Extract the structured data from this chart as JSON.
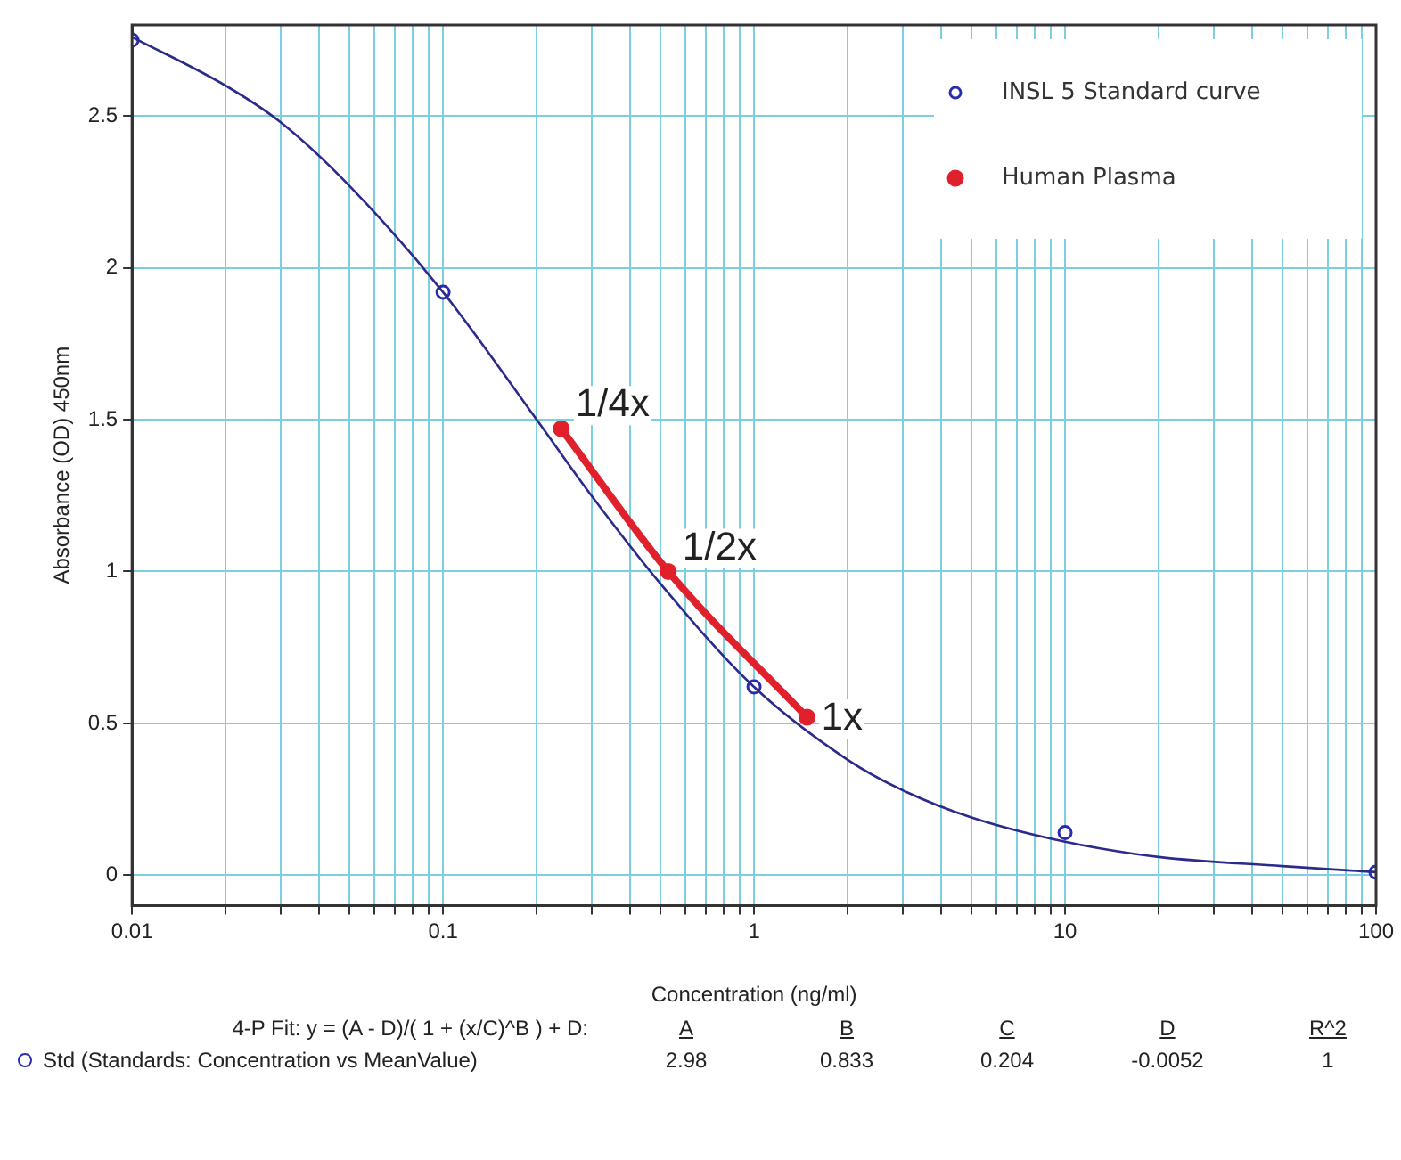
{
  "chart_data": {
    "type": "line",
    "xlabel": "Concentration (ng/ml)",
    "ylabel": "Absorbance (OD) 450nm",
    "log": "x",
    "grid": true,
    "legend": "top right",
    "xlim": [
      0.01,
      100
    ],
    "ylim": [
      -0.1,
      2.8
    ],
    "xticks": [
      0.01,
      {
        "value": 0.02,
        "label": null
      },
      {
        "value": 0.03,
        "label": null
      },
      {
        "value": 0.04,
        "label": null
      },
      {
        "value": 0.05,
        "label": null
      },
      {
        "value": 0.06,
        "label": null
      },
      {
        "value": 0.07,
        "label": null
      },
      {
        "value": 0.08,
        "label": null
      },
      {
        "value": 0.09,
        "label": null
      },
      0.1,
      {
        "value": 0.2,
        "label": null
      },
      {
        "value": 0.3,
        "label": null
      },
      {
        "value": 0.4,
        "label": null
      },
      {
        "value": 0.5,
        "label": null
      },
      {
        "value": 0.6,
        "label": null
      },
      {
        "value": 0.7,
        "label": null
      },
      {
        "value": 0.8,
        "label": null
      },
      {
        "value": 0.9,
        "label": null
      },
      1,
      {
        "value": 2,
        "label": null
      },
      {
        "value": 3,
        "label": null
      },
      {
        "value": 4,
        "label": null
      },
      {
        "value": 5,
        "label": null
      },
      {
        "value": 6,
        "label": null
      },
      {
        "value": 7,
        "label": null
      },
      {
        "value": 8,
        "label": null
      },
      {
        "value": 9,
        "label": null
      },
      10,
      {
        "value": 20,
        "label": null
      },
      {
        "value": 30,
        "label": null
      },
      {
        "value": 40,
        "label": null
      },
      {
        "value": 50,
        "label": null
      },
      {
        "value": 60,
        "label": null
      },
      {
        "value": 70,
        "label": null
      },
      {
        "value": 80,
        "label": null
      },
      {
        "value": 90,
        "label": null
      },
      100
    ],
    "yticks": [
      0,
      0.5,
      1,
      1.5,
      2,
      2.5
    ],
    "series": [
      {
        "color": "#2b2b8c",
        "marker": "none",
        "x": [
          0.01,
          0.02,
          0.03,
          0.05,
          0.1,
          0.2,
          0.3,
          0.5,
          1,
          2,
          3,
          5,
          10,
          20,
          50,
          100
        ],
        "values": [
          2.76,
          2.6,
          2.48,
          2.27,
          1.92,
          1.5,
          1.25,
          0.96,
          0.62,
          0.38,
          0.28,
          0.19,
          0.11,
          0.06,
          0.03,
          0.01
        ]
      },
      {
        "type": "scatter",
        "name": "INSL 5 Standard curve",
        "color": "#2b2bb0",
        "marker": "circle",
        "x": [
          0.01,
          0.1,
          1,
          10,
          100
        ],
        "values": [
          2.75,
          1.92,
          0.62,
          0.14,
          0.01
        ]
      },
      {
        "name": "Human Plasma",
        "color": "#e0202a",
        "marker": "circle",
        "x": [
          0.24,
          0.53,
          1.48
        ],
        "values": [
          1.47,
          1.0,
          0.52
        ],
        "value_labels": [
          "1/4x",
          "1/2x",
          "1x"
        ]
      }
    ],
    "annotations": [
      "4-P Fit: y = (A - D)/( 1 + (x/C)^B ) + D:",
      "A",
      "B",
      "C",
      "D",
      "R^2",
      "Std (Standards: Concentration vs MeanValue)",
      "2.98",
      "0.833",
      "0.204",
      "-0.0052",
      "1"
    ]
  }
}
